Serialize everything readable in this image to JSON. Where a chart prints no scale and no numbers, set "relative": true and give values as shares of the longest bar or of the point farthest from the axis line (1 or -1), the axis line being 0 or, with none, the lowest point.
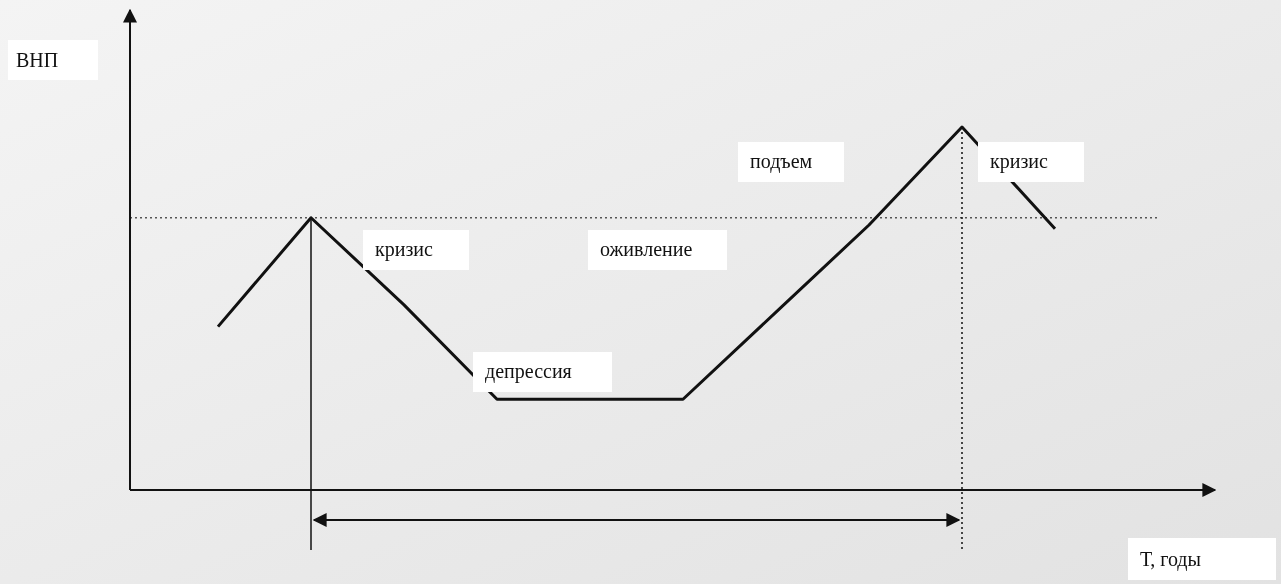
{
  "chart_data": {
    "type": "line",
    "relative": true,
    "xlabel": "Т, годы",
    "ylabel": "ВНП",
    "categories": [
      null,
      null,
      null,
      null,
      null,
      null,
      null,
      null,
      null,
      null
    ],
    "series": [
      {
        "color": "#111111",
        "values": [
          0.45,
          0.75,
          0.51,
          0.25,
          0.25,
          0.25,
          0.49,
          0.73,
          1,
          0.72
        ]
      }
    ],
    "ref_lines": [
      {
        "axis": "y",
        "value": 0.75,
        "color": "#555555",
        "line_style": "dotted"
      }
    ],
    "annotations": [
      "кризис",
      "оживление",
      "депрессия",
      "подъем",
      "кризис"
    ],
    "grid": false,
    "marker": "none",
    "line_style": "solid"
  }
}
